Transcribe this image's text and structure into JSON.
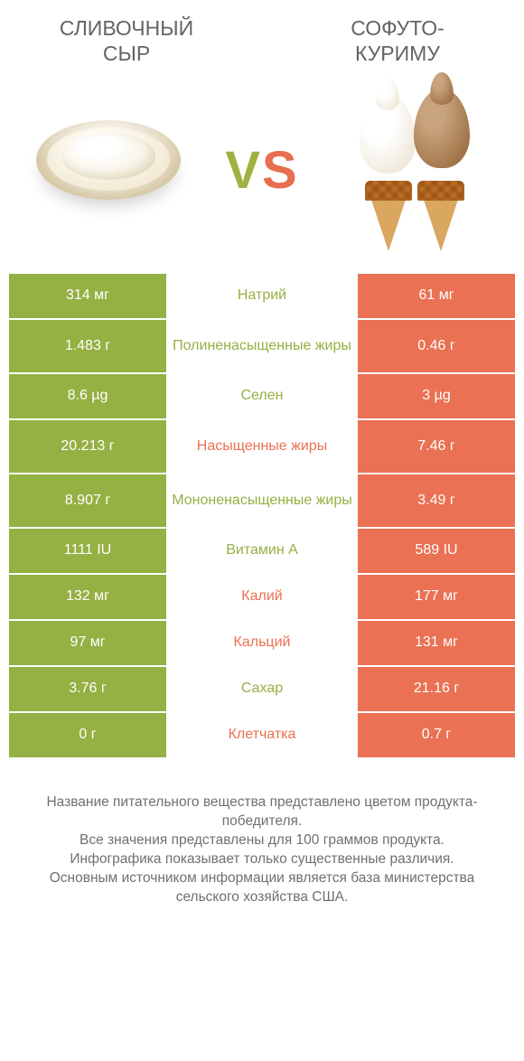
{
  "header": {
    "left_title": "СЛИВОЧНЫЙ\nСЫР",
    "right_title": "СОФУТО-\nКУРИМУ",
    "vs_v": "V",
    "vs_s": "S"
  },
  "colors": {
    "green": "#95b043",
    "orange": "#ea7153",
    "bg": "#ffffff",
    "text": "#646464"
  },
  "table": {
    "rows": [
      {
        "left": "314 мг",
        "label": "Натрий",
        "right": "61 мг",
        "winner": "left",
        "tall": false
      },
      {
        "left": "1.483 г",
        "label": "Полиненасыщенные жиры",
        "right": "0.46 г",
        "winner": "left",
        "tall": true
      },
      {
        "left": "8.6 µg",
        "label": "Селен",
        "right": "3 µg",
        "winner": "left",
        "tall": false
      },
      {
        "left": "20.213 г",
        "label": "Насыщенные жиры",
        "right": "7.46 г",
        "winner": "right",
        "tall": true
      },
      {
        "left": "8.907 г",
        "label": "Мононенасыщенные жиры",
        "right": "3.49 г",
        "winner": "left",
        "tall": true
      },
      {
        "left": "1111 IU",
        "label": "Витамин A",
        "right": "589 IU",
        "winner": "left",
        "tall": false
      },
      {
        "left": "132 мг",
        "label": "Калий",
        "right": "177 мг",
        "winner": "right",
        "tall": false
      },
      {
        "left": "97 мг",
        "label": "Кальций",
        "right": "131 мг",
        "winner": "right",
        "tall": false
      },
      {
        "left": "3.76 г",
        "label": "Сахар",
        "right": "21.16 г",
        "winner": "left",
        "tall": false
      },
      {
        "left": "0 г",
        "label": "Клетчатка",
        "right": "0.7 г",
        "winner": "right",
        "tall": false
      }
    ]
  },
  "footer": {
    "l1": "Название питательного вещества представлено цветом продукта-победителя.",
    "l2": "Все значения представлены для 100 граммов продукта.",
    "l3": "Инфографика показывает только существенные различия.",
    "l4": "Основным источником информации является база министерства сельского хозяйства США."
  }
}
